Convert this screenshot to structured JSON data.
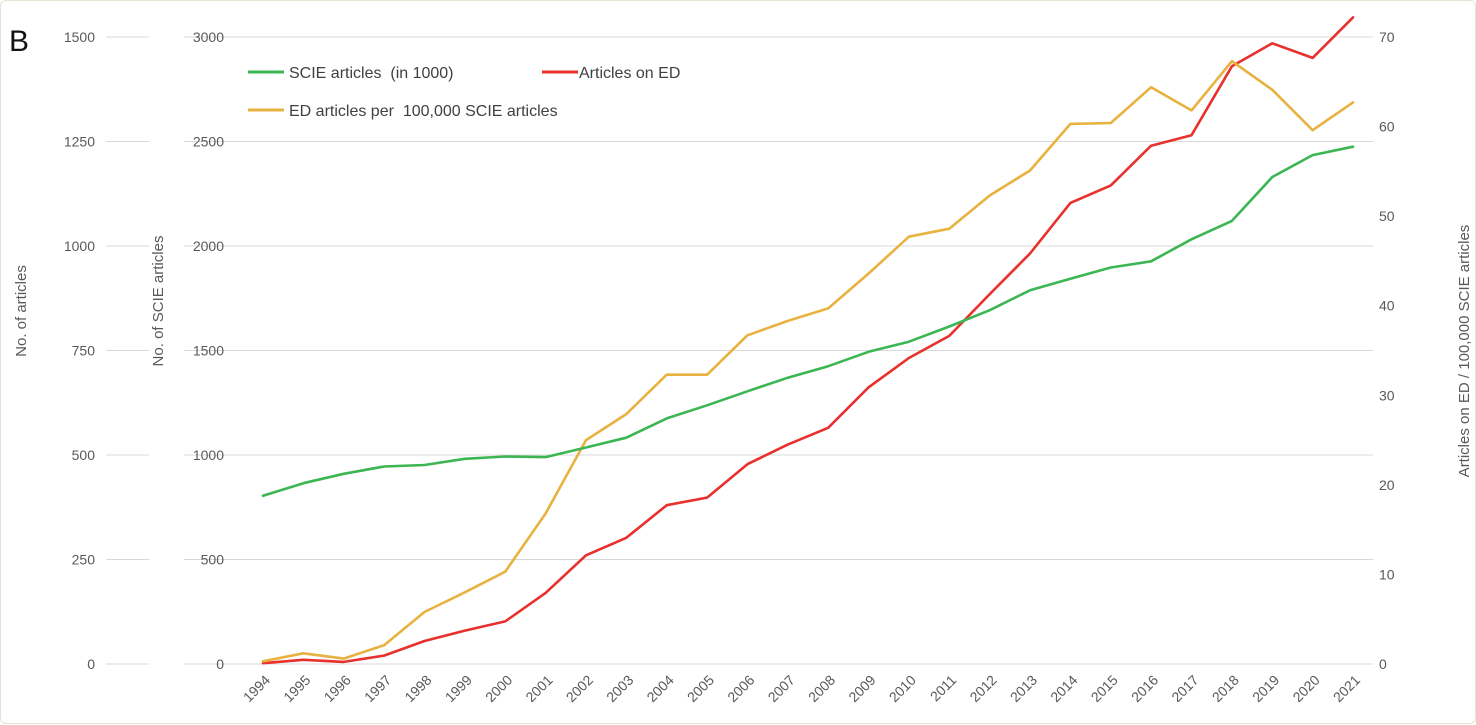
{
  "panel_label": "B",
  "chart_data": {
    "type": "line",
    "x": [
      "1994",
      "1995",
      "1996",
      "1997",
      "1998",
      "1999",
      "2000",
      "2001",
      "2002",
      "2003",
      "2004",
      "2005",
      "2006",
      "2007",
      "2008",
      "2009",
      "2010",
      "2011",
      "2012",
      "2013",
      "2014",
      "2015",
      "2016",
      "2017",
      "2018",
      "2019",
      "2020",
      "2021"
    ],
    "axes": {
      "left_outer": {
        "title": "No. of articles",
        "ticks": [
          "0",
          "250",
          "500",
          "750",
          "1000",
          "1250",
          "1500"
        ],
        "range": [
          0,
          1500
        ]
      },
      "left_inner": {
        "title": "No. of SCIE articles",
        "ticks": [
          "0",
          "500",
          "1000",
          "1500",
          "2000",
          "2500",
          "3000"
        ],
        "range": [
          0,
          3000
        ]
      },
      "right": {
        "title": "Articles on ED / 100,000 SCIE articles",
        "ticks": [
          "0",
          "10",
          "20",
          "30",
          "40",
          "50",
          "60",
          "70"
        ],
        "range": [
          0,
          70
        ]
      }
    },
    "grid": true,
    "legend_position": "top-left",
    "series": [
      {
        "name": "SCIE articles  (in 1000)",
        "axis": "left_inner",
        "color": "#3cb553",
        "values": [
          805,
          865,
          910,
          945,
          952,
          982,
          993,
          990,
          1036,
          1083,
          1175,
          1238,
          1305,
          1370,
          1425,
          1494,
          1542,
          1615,
          1693,
          1788,
          1843,
          1897,
          1927,
          2032,
          2120,
          2330,
          2435,
          2475
        ]
      },
      {
        "name": "Articles on ED",
        "axis": "left_outer",
        "color": "#e8302d",
        "values": [
          2,
          10,
          5,
          20,
          55,
          80,
          102,
          170,
          260,
          302,
          380,
          398,
          478,
          525,
          565,
          662,
          732,
          785,
          885,
          982,
          1103,
          1145,
          1240,
          1265,
          1430,
          1485,
          1450,
          1547
        ]
      },
      {
        "name": "ED articles per  100,000 SCIE articles",
        "axis": "right",
        "color": "#e8b240",
        "values": [
          0.3,
          1.2,
          0.6,
          2.1,
          5.8,
          8.0,
          10.3,
          16.8,
          25.0,
          27.9,
          32.3,
          32.3,
          36.7,
          38.3,
          39.7,
          43.6,
          47.7,
          48.6,
          52.3,
          55.1,
          60.3,
          60.4,
          64.4,
          61.8,
          67.3,
          64.1,
          59.6,
          62.7
        ]
      }
    ]
  }
}
